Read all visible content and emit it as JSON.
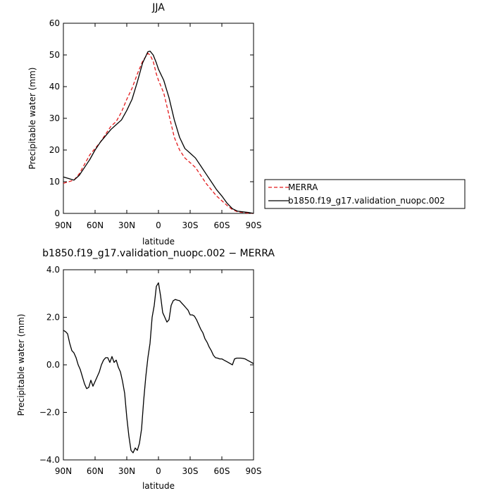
{
  "chart_data": [
    {
      "type": "line",
      "title": "JJA",
      "xlabel": "latitude",
      "ylabel": "Precipitable water (mm)",
      "xlim": [
        90,
        -90
      ],
      "ylim": [
        0,
        60
      ],
      "xticks": [
        {
          "value": 90,
          "label": "90N"
        },
        {
          "value": 60,
          "label": "60N"
        },
        {
          "value": 30,
          "label": "30N"
        },
        {
          "value": 0,
          "label": "0"
        },
        {
          "value": -30,
          "label": "30S"
        },
        {
          "value": -60,
          "label": "60S"
        },
        {
          "value": -90,
          "label": "90S"
        }
      ],
      "yticks": [
        0,
        10,
        20,
        30,
        40,
        50,
        60
      ],
      "legend_position": "right",
      "series": [
        {
          "name": "MERRA",
          "color": "#e41a1c",
          "dash": "dashed",
          "x": [
            90,
            85,
            80,
            75,
            70,
            65,
            60,
            55,
            50,
            45,
            40,
            35,
            30,
            25,
            20,
            15,
            10,
            8,
            5,
            2,
            0,
            -5,
            -10,
            -15,
            -20,
            -25,
            -30,
            -35,
            -40,
            -45,
            -50,
            -55,
            -60,
            -65,
            -70,
            -75,
            -80,
            -85,
            -90
          ],
          "y": [
            9.5,
            10,
            10.5,
            12.5,
            15.5,
            18.5,
            20.5,
            22.5,
            25,
            27.5,
            29,
            32,
            36,
            39.5,
            44,
            48,
            50.5,
            50,
            48,
            44,
            42,
            38,
            31,
            24,
            20,
            17.5,
            16,
            14.5,
            12,
            9.5,
            7.5,
            5.5,
            4,
            2.5,
            1.2,
            0.5,
            0.3,
            0.1,
            0
          ]
        },
        {
          "name": "b1850.f19_g17.validation_nuopc.002",
          "color": "#000000",
          "dash": "solid",
          "x": [
            90,
            85,
            80,
            75,
            70,
            65,
            60,
            55,
            50,
            45,
            40,
            35,
            30,
            25,
            20,
            15,
            10,
            8,
            5,
            2,
            0,
            -5,
            -10,
            -15,
            -20,
            -25,
            -30,
            -35,
            -40,
            -45,
            -50,
            -55,
            -60,
            -65,
            -70,
            -75,
            -80,
            -85,
            -90
          ],
          "y": [
            11.5,
            11,
            10.5,
            12,
            14.5,
            17,
            20,
            22.5,
            24.5,
            26.5,
            28,
            29.5,
            32.5,
            36,
            41.5,
            47.5,
            51,
            51.2,
            50,
            47.5,
            45.5,
            42,
            36.5,
            29.5,
            24,
            20.5,
            19,
            17.5,
            15,
            12.5,
            10,
            7.5,
            5.5,
            3.2,
            1.5,
            0.7,
            0.5,
            0.3,
            0
          ]
        }
      ]
    },
    {
      "type": "line",
      "title": "b1850.f19_g17.validation_nuopc.002 − MERRA",
      "xlabel": "latitude",
      "ylabel": "Precipitable water (mm)",
      "xlim": [
        90,
        -90
      ],
      "ylim": [
        -4,
        4
      ],
      "xticks": [
        {
          "value": 90,
          "label": "90N"
        },
        {
          "value": 60,
          "label": "60N"
        },
        {
          "value": 30,
          "label": "30N"
        },
        {
          "value": 0,
          "label": "0"
        },
        {
          "value": -30,
          "label": "30S"
        },
        {
          "value": -60,
          "label": "60S"
        },
        {
          "value": -90,
          "label": "90S"
        }
      ],
      "yticks": [
        {
          "value": -4,
          "label": "−4.0"
        },
        {
          "value": -2,
          "label": "−2.0"
        },
        {
          "value": 0,
          "label": "0.0"
        },
        {
          "value": 2,
          "label": "2.0"
        },
        {
          "value": 4,
          "label": "4.0"
        }
      ],
      "series": [
        {
          "color": "#000000",
          "dash": "solid",
          "x": [
            90,
            88,
            86,
            84,
            82,
            80,
            78,
            76,
            74,
            72,
            70,
            68,
            66,
            64,
            62,
            60,
            58,
            56,
            54,
            52,
            50,
            48,
            46,
            44,
            42,
            40,
            38,
            36,
            34,
            32,
            30,
            28,
            26,
            24,
            22,
            20,
            18,
            16,
            14,
            12,
            10,
            8,
            6,
            4,
            2,
            0,
            -2,
            -4,
            -6,
            -8,
            -10,
            -12,
            -14,
            -16,
            -18,
            -20,
            -22,
            -24,
            -26,
            -28,
            -30,
            -32,
            -34,
            -36,
            -38,
            -40,
            -42,
            -44,
            -46,
            -48,
            -50,
            -52,
            -54,
            -56,
            -58,
            -60,
            -62,
            -64,
            -66,
            -68,
            -70,
            -72,
            -74,
            -76,
            -78,
            -80,
            -82,
            -84,
            -86,
            -88,
            -90
          ],
          "y": [
            1.45,
            1.4,
            1.3,
            0.9,
            0.6,
            0.5,
            0.3,
            0.0,
            -0.2,
            -0.5,
            -0.8,
            -1.0,
            -0.95,
            -0.65,
            -0.9,
            -0.7,
            -0.5,
            -0.3,
            0.0,
            0.2,
            0.3,
            0.3,
            0.1,
            0.35,
            0.1,
            0.2,
            -0.1,
            -0.3,
            -0.7,
            -1.2,
            -2.2,
            -3.0,
            -3.6,
            -3.7,
            -3.5,
            -3.6,
            -3.3,
            -2.7,
            -1.5,
            -0.5,
            0.3,
            0.9,
            2.0,
            2.5,
            3.3,
            3.45,
            2.9,
            2.2,
            2.0,
            1.8,
            1.9,
            2.5,
            2.7,
            2.75,
            2.72,
            2.7,
            2.6,
            2.5,
            2.4,
            2.3,
            2.1,
            2.1,
            2.05,
            1.9,
            1.7,
            1.5,
            1.35,
            1.1,
            0.95,
            0.75,
            0.6,
            0.4,
            0.3,
            0.28,
            0.25,
            0.25,
            0.2,
            0.15,
            0.1,
            0.05,
            0.0,
            0.25,
            0.28,
            0.28,
            0.28,
            0.27,
            0.25,
            0.2,
            0.15,
            0.1,
            0.05
          ]
        }
      ]
    }
  ]
}
